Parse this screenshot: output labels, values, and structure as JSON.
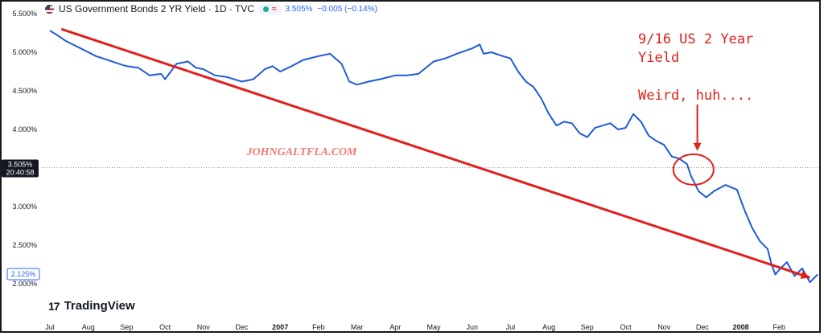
{
  "header": {
    "title": "US Government Bonds 2 YR Yield · 1D · TVC",
    "status_symbol": "≈",
    "last_value": "3.505%",
    "change": "−0.005 (−0.14%)"
  },
  "branding": {
    "logo_text": "TradingView",
    "watermark": "JOHNGALTFLA.COM"
  },
  "badges": {
    "crosshair_value": "3.505%",
    "crosshair_time": "20:40:58",
    "last_price": "2.125%"
  },
  "annotations": {
    "note_line1": "9/16 US 2 Year",
    "note_line2": "Yield",
    "note_line3": "Weird, huh...."
  },
  "colors": {
    "series": "#1f5bd6",
    "annotation": "#e0201b",
    "axis_text": "#131722",
    "watermark": "#f05a4f"
  },
  "chart_data": {
    "type": "line",
    "x_unit": "months from start of Jul 2006",
    "y_unit": "percent",
    "xlim": [
      0,
      20
    ],
    "ylim": [
      1.8,
      5.55
    ],
    "y_ticks": [
      2.0,
      2.5,
      3.0,
      3.5,
      4.0,
      4.5,
      5.0,
      5.5
    ],
    "y_tick_labels": [
      "2.000%",
      "2.500%",
      "3.000%",
      "3.500%",
      "4.000%",
      "4.500%",
      "5.000%",
      "5.500%"
    ],
    "x_ticks": [
      {
        "pos": 0,
        "label": "Jul"
      },
      {
        "pos": 1,
        "label": "Aug"
      },
      {
        "pos": 2,
        "label": "Sep"
      },
      {
        "pos": 3,
        "label": "Oct"
      },
      {
        "pos": 4,
        "label": "Nov"
      },
      {
        "pos": 5,
        "label": "Dec"
      },
      {
        "pos": 6,
        "label": "2007",
        "bold": true
      },
      {
        "pos": 7,
        "label": "Feb"
      },
      {
        "pos": 8,
        "label": "Mar"
      },
      {
        "pos": 9,
        "label": "Apr"
      },
      {
        "pos": 10,
        "label": "May"
      },
      {
        "pos": 11,
        "label": "Jun"
      },
      {
        "pos": 12,
        "label": "Jul"
      },
      {
        "pos": 13,
        "label": "Aug"
      },
      {
        "pos": 14,
        "label": "Sep"
      },
      {
        "pos": 15,
        "label": "Oct"
      },
      {
        "pos": 16,
        "label": "Nov"
      },
      {
        "pos": 17,
        "label": "Dec"
      },
      {
        "pos": 18,
        "label": "2008",
        "bold": true
      },
      {
        "pos": 19,
        "label": "Feb"
      }
    ],
    "series": [
      {
        "x": [
          0,
          0.2,
          0.4,
          0.6,
          0.8,
          1.0,
          1.2,
          1.5,
          1.8,
          2.0,
          2.3,
          2.6,
          2.9,
          3.0,
          3.3,
          3.6,
          3.8,
          4.0,
          4.3,
          4.6,
          5.0,
          5.3,
          5.6,
          5.8,
          6.0,
          6.3,
          6.6,
          7.0,
          7.3,
          7.6,
          7.8,
          8.0,
          8.3,
          8.6,
          9.0,
          9.3,
          9.6,
          10.0,
          10.3,
          10.6,
          11.0,
          11.2,
          11.3,
          11.5,
          11.8,
          12.0,
          12.2,
          12.4,
          12.6,
          12.8,
          13.0,
          13.2,
          13.4,
          13.6,
          13.8,
          14.0,
          14.2,
          14.4,
          14.6,
          14.8,
          15.0,
          15.2,
          15.4,
          15.6,
          15.8,
          16.0,
          16.2,
          16.4,
          16.6,
          16.7,
          16.9,
          17.1,
          17.3,
          17.6,
          17.9,
          18.1,
          18.3,
          18.5,
          18.7,
          18.8,
          18.9,
          19.0,
          19.2,
          19.4,
          19.6,
          19.8,
          20.0
        ],
        "y": [
          5.28,
          5.22,
          5.15,
          5.1,
          5.05,
          5.0,
          4.95,
          4.9,
          4.85,
          4.82,
          4.8,
          4.7,
          4.72,
          4.65,
          4.85,
          4.88,
          4.8,
          4.78,
          4.7,
          4.68,
          4.62,
          4.65,
          4.78,
          4.82,
          4.75,
          4.82,
          4.9,
          4.95,
          4.98,
          4.85,
          4.62,
          4.58,
          4.62,
          4.65,
          4.7,
          4.7,
          4.72,
          4.88,
          4.92,
          4.98,
          5.05,
          5.1,
          4.98,
          5.0,
          4.95,
          4.92,
          4.75,
          4.62,
          4.55,
          4.4,
          4.2,
          4.05,
          4.1,
          4.08,
          3.95,
          3.9,
          4.02,
          4.05,
          4.08,
          4.0,
          4.02,
          4.2,
          4.1,
          3.92,
          3.85,
          3.8,
          3.65,
          3.62,
          3.55,
          3.4,
          3.2,
          3.12,
          3.2,
          3.28,
          3.22,
          2.95,
          2.72,
          2.55,
          2.45,
          2.25,
          2.12,
          2.18,
          2.28,
          2.1,
          2.2,
          2.02,
          2.12
        ]
      }
    ],
    "trendline": {
      "x": [
        0.3,
        19.8
      ],
      "y": [
        5.3,
        2.08
      ]
    },
    "circle_marker": {
      "x": 16.6,
      "y": 3.48
    },
    "arrow_target": {
      "x": 16.7,
      "y": 3.7
    },
    "crosshair_y": 3.505,
    "last_value": 2.125
  }
}
